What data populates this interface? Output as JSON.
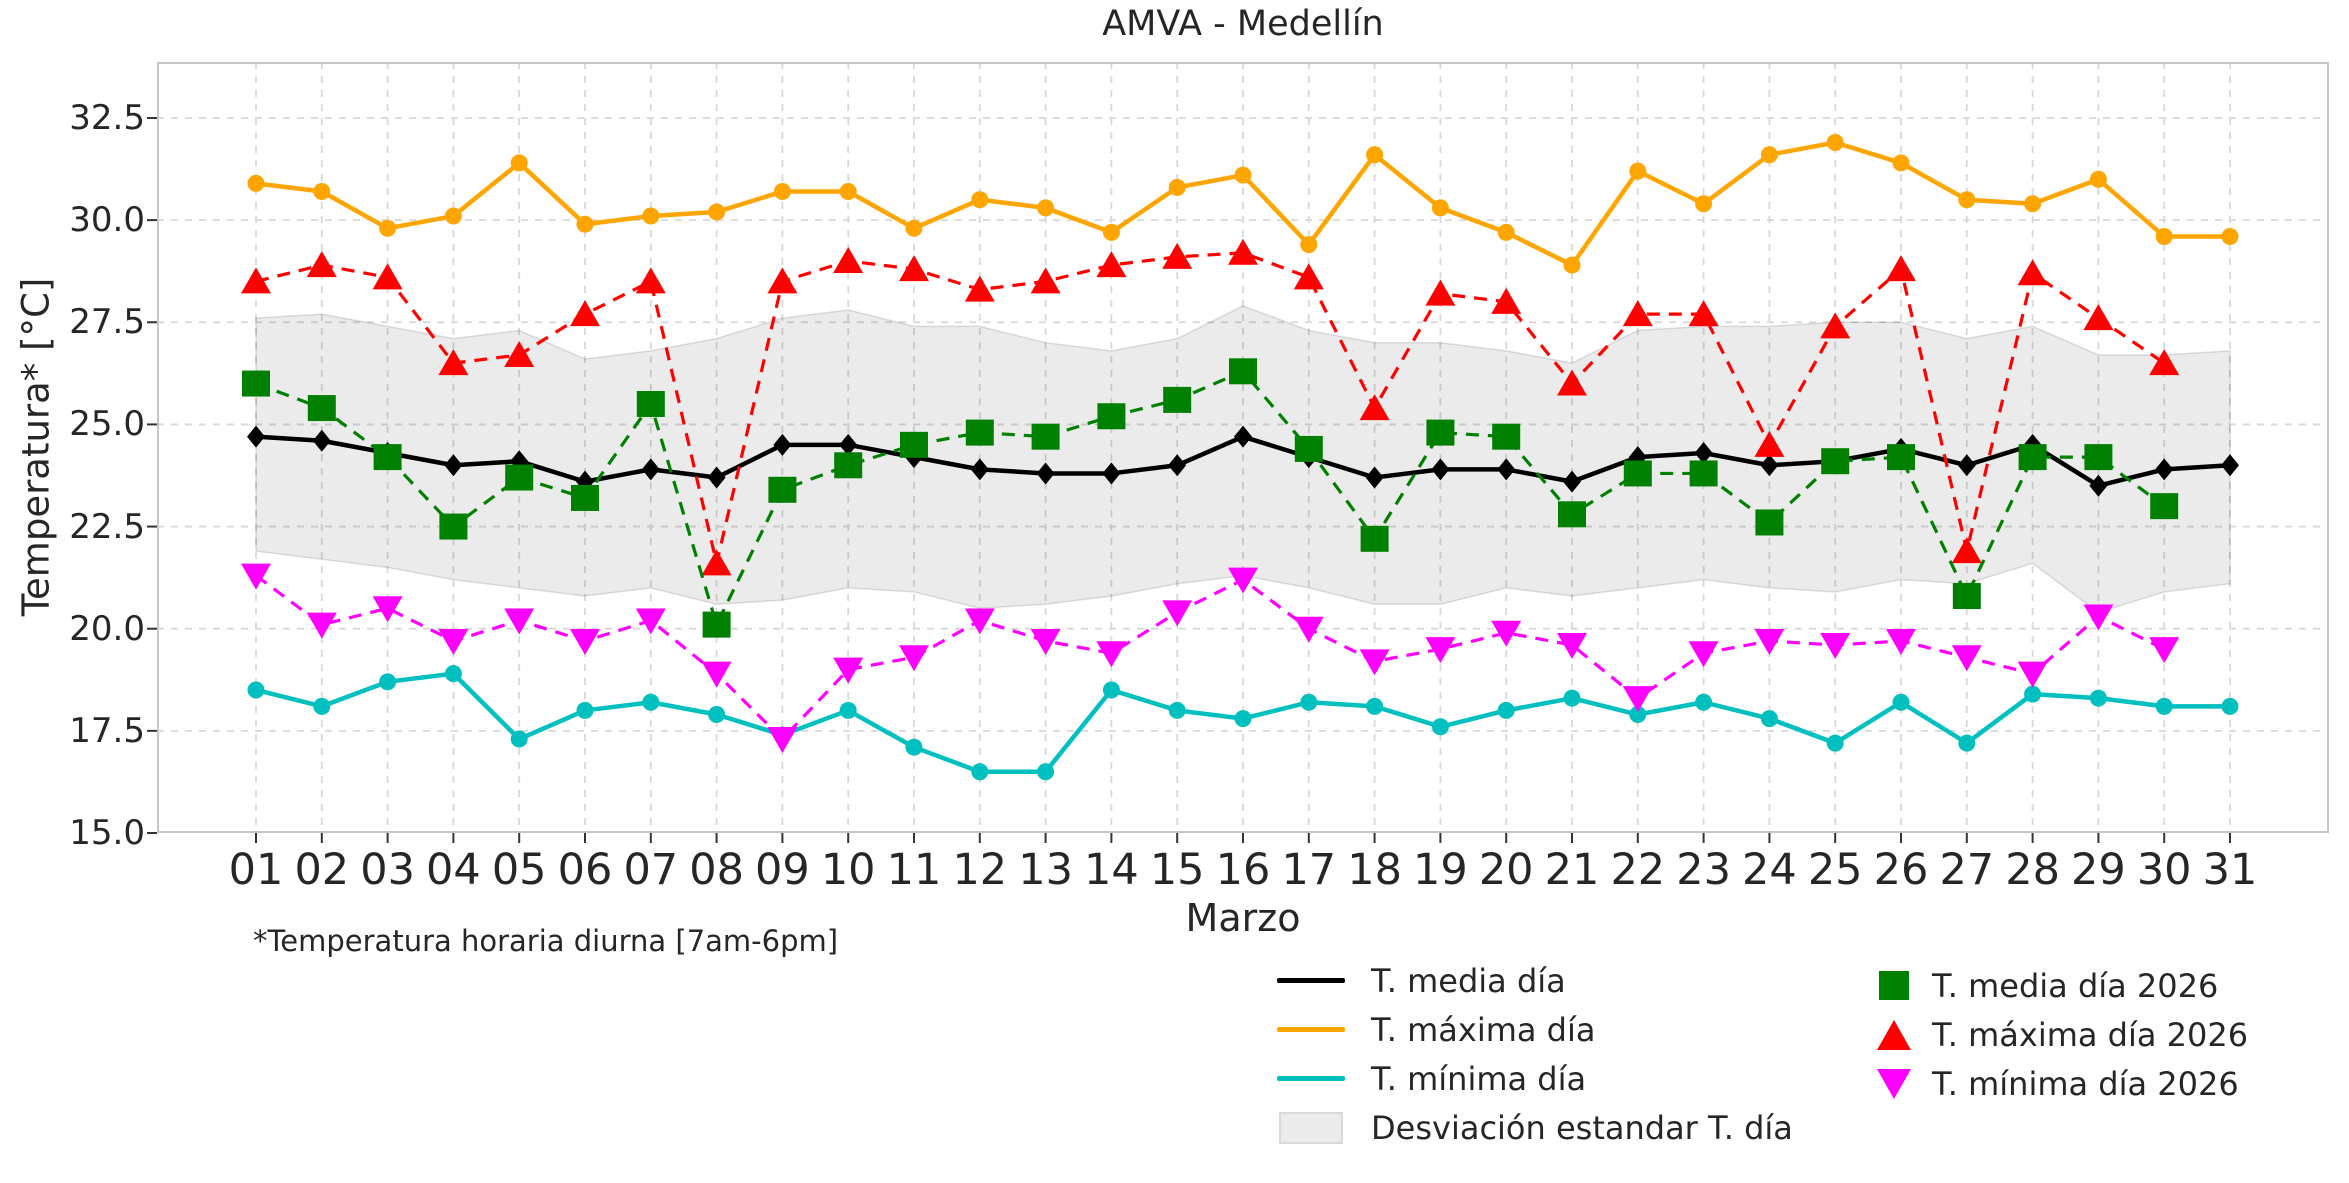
{
  "title": "AMVA - Medellín",
  "footnote": "*Temperatura horaria diurna [7am-6pm]",
  "chart_data": {
    "type": "line",
    "title": "AMVA - Medellín",
    "xlabel": "Marzo",
    "ylabel": "Temperatura* [°C]",
    "x_categories": [
      "01",
      "02",
      "03",
      "04",
      "05",
      "06",
      "07",
      "08",
      "09",
      "10",
      "11",
      "12",
      "13",
      "14",
      "15",
      "16",
      "17",
      "18",
      "19",
      "20",
      "21",
      "22",
      "23",
      "24",
      "25",
      "26",
      "27",
      "28",
      "29",
      "30",
      "31"
    ],
    "y_ticks": [
      "15.0",
      "17.5",
      "20.0",
      "22.5",
      "25.0",
      "27.5",
      "30.0",
      "32.5"
    ],
    "ylim": [
      15,
      33.87
    ],
    "grid": true,
    "legend_position": "below",
    "series": [
      {
        "id": "t-maxima-dia",
        "label": "T. máxima día",
        "color": "#FFA500",
        "line": "solid",
        "marker": "circle",
        "values": [
          30.9,
          30.7,
          29.8,
          30.1,
          31.4,
          29.9,
          30.1,
          30.2,
          30.7,
          30.7,
          29.8,
          30.5,
          30.3,
          29.7,
          30.8,
          31.1,
          29.4,
          31.6,
          30.3,
          29.7,
          28.9,
          31.2,
          30.4,
          31.6,
          31.9,
          31.4,
          30.5,
          30.4,
          31.0,
          29.6,
          29.6
        ]
      },
      {
        "id": "t-minima-dia",
        "label": "T. mínima día",
        "color": "#00BFBF",
        "line": "solid",
        "marker": "circle",
        "values": [
          18.5,
          18.1,
          18.7,
          18.9,
          17.3,
          18.0,
          18.2,
          17.9,
          17.4,
          18.0,
          17.1,
          16.5,
          16.5,
          18.5,
          18.0,
          17.8,
          18.2,
          18.1,
          17.6,
          18.0,
          18.3,
          17.9,
          18.2,
          17.8,
          17.2,
          18.2,
          17.2,
          18.4,
          18.3,
          18.1,
          18.1
        ]
      },
      {
        "id": "t-media-dia",
        "label": "T. media día",
        "color": "#000000",
        "line": "solid",
        "marker": "diamond",
        "values": [
          24.7,
          24.6,
          24.3,
          24.0,
          24.1,
          23.6,
          23.9,
          23.7,
          24.5,
          24.5,
          24.2,
          23.9,
          23.8,
          23.8,
          24.0,
          24.7,
          24.2,
          23.7,
          23.9,
          23.9,
          23.6,
          24.2,
          24.3,
          24.0,
          24.1,
          24.4,
          24.0,
          24.5,
          23.5,
          23.9,
          24.0
        ]
      },
      {
        "id": "t-maxima-dia-2026",
        "label": "T. máxima día 2026",
        "color": "#FF0000",
        "line": "dashed",
        "marker": "triangle-up",
        "values": [
          28.5,
          28.9,
          28.6,
          26.5,
          26.7,
          27.7,
          28.5,
          21.6,
          28.5,
          29.0,
          28.8,
          28.3,
          28.5,
          28.9,
          29.1,
          29.2,
          28.6,
          25.4,
          28.2,
          28.0,
          26.0,
          27.7,
          27.7,
          24.5,
          27.4,
          28.8,
          21.9,
          28.7,
          27.6,
          26.5
        ]
      },
      {
        "id": "t-media-dia-2026",
        "label": "T. media día 2026",
        "color": "#008000",
        "line": "dashed",
        "marker": "square",
        "values": [
          26.0,
          25.4,
          24.2,
          22.5,
          23.7,
          23.2,
          25.5,
          20.1,
          23.4,
          24.0,
          24.5,
          24.8,
          24.7,
          25.2,
          25.6,
          26.3,
          24.4,
          22.2,
          24.8,
          24.7,
          22.8,
          23.8,
          23.8,
          22.6,
          24.1,
          24.2,
          20.8,
          24.2,
          24.2,
          23.0
        ]
      },
      {
        "id": "t-minima-dia-2026",
        "label": "T. mínima día 2026",
        "color": "#FF00FF",
        "line": "dashed",
        "marker": "triangle-down",
        "values": [
          21.3,
          20.1,
          20.5,
          19.7,
          20.2,
          19.7,
          20.2,
          18.9,
          17.3,
          19.0,
          19.3,
          20.2,
          19.7,
          19.4,
          20.4,
          21.2,
          20.0,
          19.2,
          19.5,
          19.9,
          19.6,
          18.3,
          19.4,
          19.7,
          19.6,
          19.7,
          19.3,
          18.9,
          20.3,
          19.5
        ]
      }
    ],
    "band": {
      "label": "Desviación estandar T. día",
      "fill": "rgba(0,0,0,0.08)",
      "edge": "rgba(0,0,0,0.12)",
      "upper": [
        27.6,
        27.7,
        27.4,
        27.1,
        27.3,
        26.6,
        26.8,
        27.1,
        27.6,
        27.8,
        27.4,
        27.4,
        27.0,
        26.8,
        27.1,
        27.9,
        27.3,
        27.0,
        27.0,
        26.8,
        26.5,
        27.3,
        27.4,
        27.4,
        27.5,
        27.5,
        27.1,
        27.4,
        26.7,
        26.7,
        26.8
      ],
      "lower": [
        21.9,
        21.7,
        21.5,
        21.2,
        21.0,
        20.8,
        21.0,
        20.6,
        20.7,
        21.0,
        20.9,
        20.5,
        20.6,
        20.8,
        21.1,
        21.3,
        21.0,
        20.6,
        20.6,
        21.0,
        20.8,
        21.0,
        21.2,
        21.0,
        20.9,
        21.2,
        21.1,
        21.6,
        20.4,
        20.9,
        21.1
      ]
    }
  },
  "legend": {
    "left": [
      {
        "label": "T. media día",
        "type": "line",
        "color": "#000000"
      },
      {
        "label": "T. máxima día",
        "type": "line",
        "color": "#FFA500"
      },
      {
        "label": "T. mínima día",
        "type": "line",
        "color": "#00BFBF"
      },
      {
        "label": "Desviación estandar T. día",
        "type": "patch",
        "color": "#EBEBEB"
      }
    ],
    "right": [
      {
        "label": "T. media día 2026",
        "type": "square",
        "color": "#008000"
      },
      {
        "label": "T. máxima día 2026",
        "type": "triangle-up",
        "color": "#FF0000"
      },
      {
        "label": "T. mínima día 2026",
        "type": "triangle-down",
        "color": "#FF00FF"
      }
    ]
  },
  "style": {
    "grid_color": "#D8D8D8",
    "spine_color": "#C6C6C6",
    "tick_color": "#333333"
  }
}
